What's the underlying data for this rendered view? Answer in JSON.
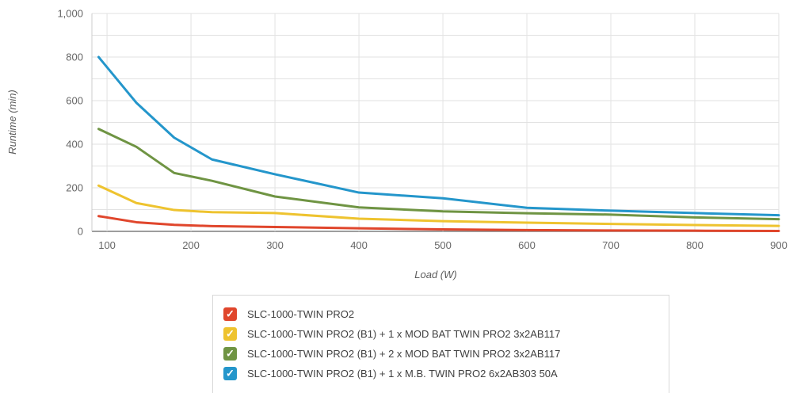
{
  "icons": {
    "check": "✓"
  },
  "colors": {
    "grid": "#e2e2e2",
    "plot_left_edge": "#cccccc",
    "axis_line": "#7f7f7f",
    "tick_text": "#666666",
    "axis_title_text": "#5c5c5c",
    "legend_text": "#404040",
    "legend_border": "#d8d8d8",
    "checkmark": "#ffffff"
  },
  "chart_data": {
    "type": "line",
    "title": "",
    "xlabel": "Load (W)",
    "ylabel": "Runtime (min)",
    "xlim": [
      82,
      900
    ],
    "ylim": [
      0,
      1000
    ],
    "x_ticks": [
      100,
      200,
      300,
      400,
      500,
      600,
      700,
      800,
      900
    ],
    "x_tick_labels": [
      "100",
      "200",
      "300",
      "400",
      "500",
      "600",
      "700",
      "800",
      "900"
    ],
    "y_major_ticks": [
      0,
      200,
      400,
      600,
      800,
      1000
    ],
    "y_tick_labels": [
      "0",
      "200",
      "400",
      "600",
      "800",
      "1,000"
    ],
    "y_minor_grid_step": 100,
    "grid": true,
    "legend_position": "bottom",
    "x": [
      90,
      135,
      180,
      225,
      300,
      400,
      500,
      600,
      700,
      800,
      900
    ],
    "series": [
      {
        "name": "SLC-1000-TWIN PRO2",
        "color": "#e0462c",
        "values": [
          70,
          42,
          30,
          24,
          20,
          14,
          9,
          6,
          4,
          3,
          2
        ]
      },
      {
        "name": "SLC-1000-TWIN PRO2 (B1) + 1 x MOD BAT TWIN PRO2 3x2AB117",
        "color": "#eec32f",
        "values": [
          210,
          130,
          98,
          88,
          84,
          58,
          47,
          40,
          34,
          29,
          25
        ]
      },
      {
        "name": "SLC-1000-TWIN PRO2 (B1) + 2 x MOD BAT TWIN PRO2 3x2AB117",
        "color": "#6f9443",
        "values": [
          470,
          388,
          268,
          232,
          160,
          110,
          92,
          83,
          77,
          64,
          56
        ]
      },
      {
        "name": "SLC-1000-TWIN PRO2 (B1) + 1 x M.B. TWIN PRO2 6x2AB303 50A",
        "color": "#2496cb",
        "values": [
          800,
          590,
          430,
          330,
          262,
          178,
          152,
          108,
          95,
          84,
          74
        ]
      }
    ]
  }
}
